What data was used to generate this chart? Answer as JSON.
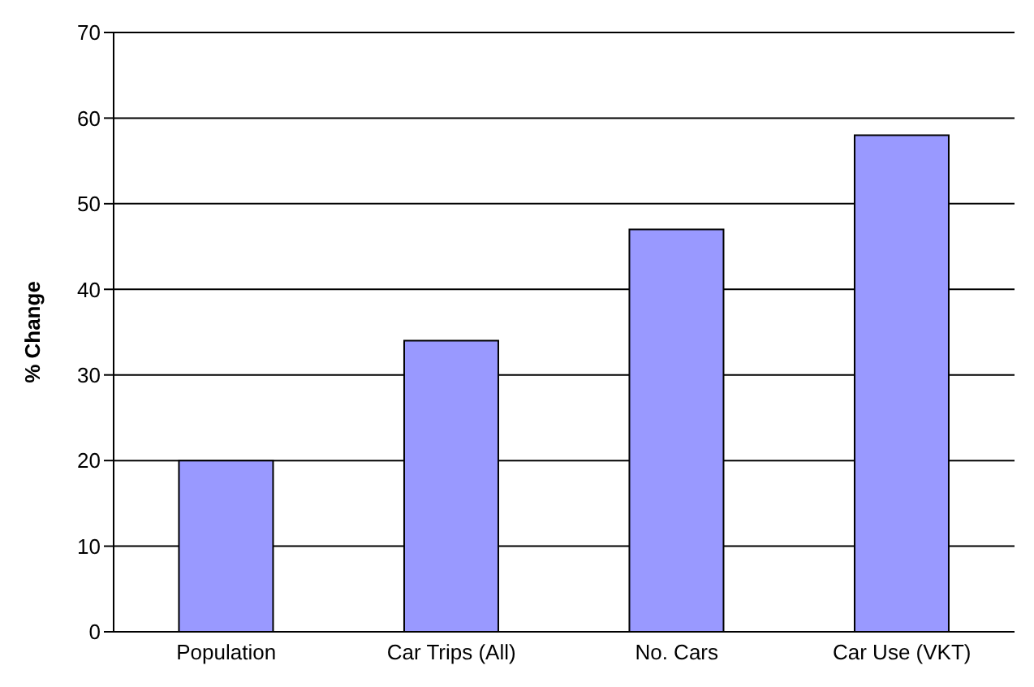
{
  "chart_data": {
    "type": "bar",
    "ylabel": "% Change",
    "categories": [
      "Population",
      "Car Trips (All)",
      "No. Cars",
      "Car Use (VKT)"
    ],
    "values": [
      20,
      34,
      47,
      58
    ],
    "color": "#9999ff",
    "ylim": [
      0,
      70
    ],
    "yticks": [
      0,
      10,
      20,
      30,
      40,
      50,
      60,
      70
    ],
    "grid": "y"
  }
}
